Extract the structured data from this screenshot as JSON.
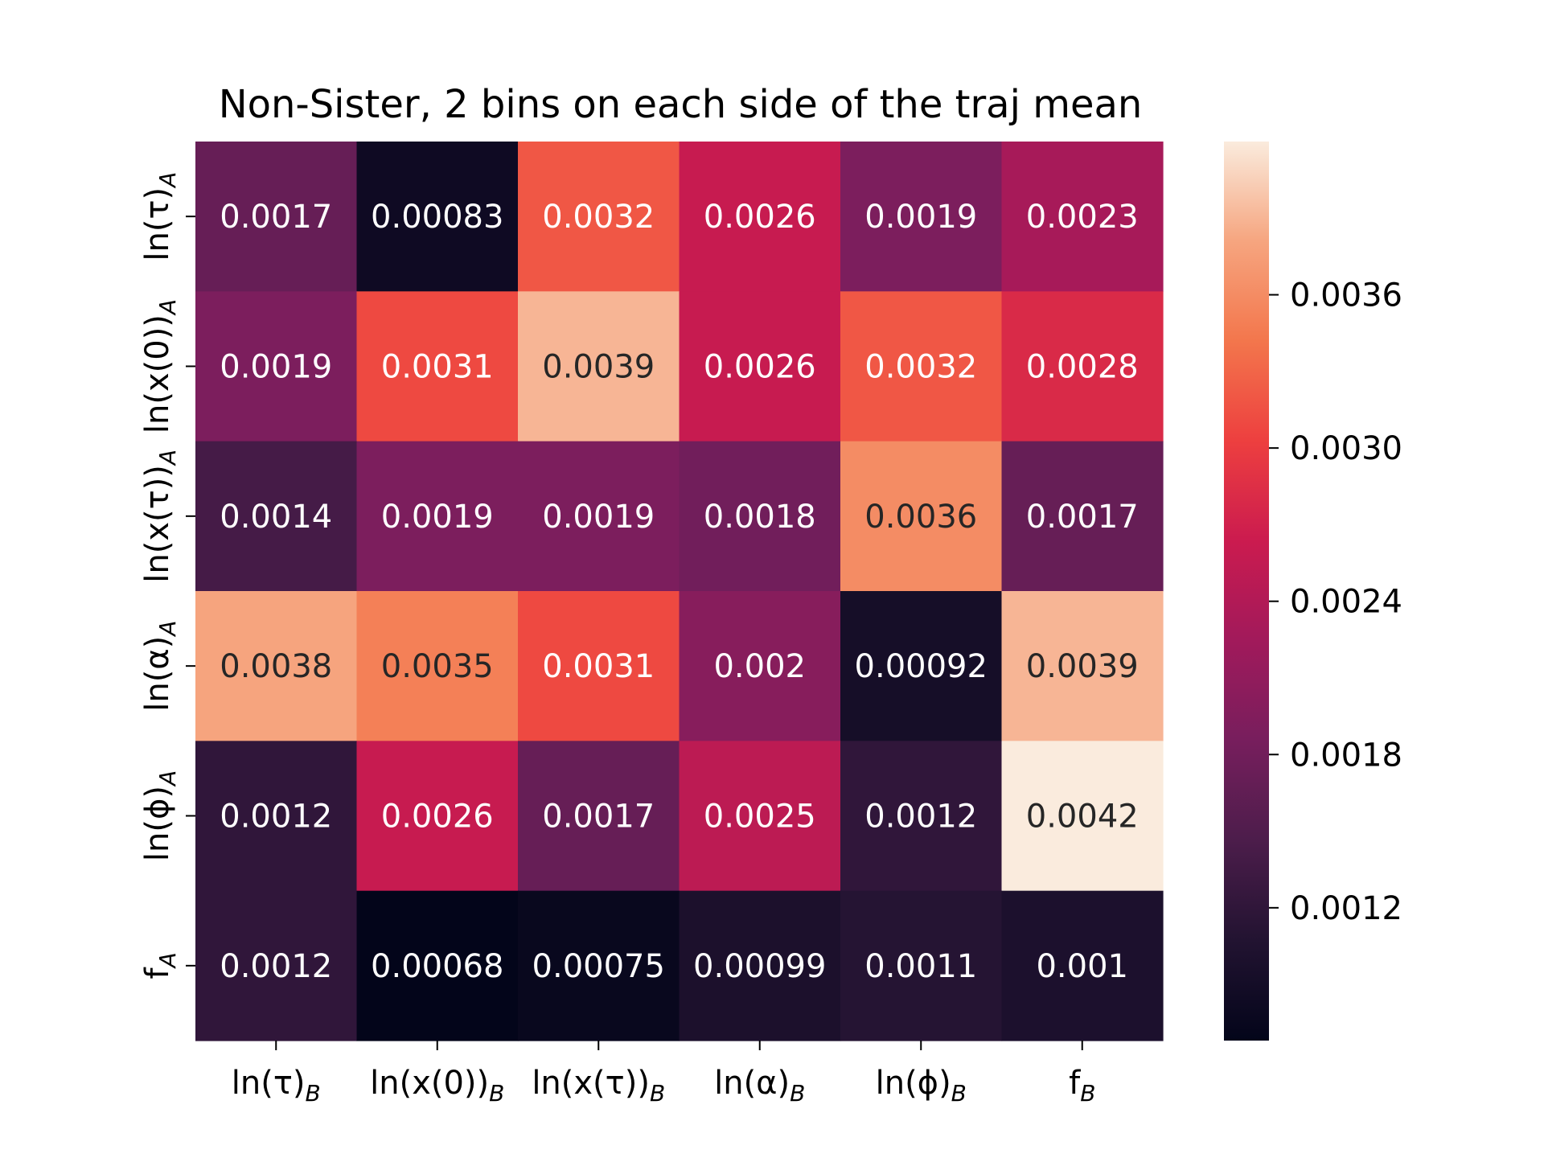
{
  "chart_data": {
    "type": "heatmap",
    "title": "Non-Sister, 2 bins on each side of the traj mean",
    "xlabel": "",
    "ylabel": "",
    "x_categories": [
      "ln(τ)_B",
      "ln(x(0))_B",
      "ln(x(τ))_B",
      "ln(α)_B",
      "ln(ϕ)_B",
      "f_B"
    ],
    "y_categories": [
      "ln(τ)_A",
      "ln(x(0))_A",
      "ln(x(τ))_A",
      "ln(α)_A",
      "ln(ϕ)_A",
      "f_A"
    ],
    "values": [
      [
        0.0017,
        0.00083,
        0.0032,
        0.0026,
        0.0019,
        0.0023
      ],
      [
        0.0019,
        0.0031,
        0.0039,
        0.0026,
        0.0032,
        0.0028
      ],
      [
        0.0014,
        0.0019,
        0.0019,
        0.0018,
        0.0036,
        0.0017
      ],
      [
        0.0038,
        0.0035,
        0.0031,
        0.002,
        0.00092,
        0.0039
      ],
      [
        0.0012,
        0.0026,
        0.0017,
        0.0025,
        0.0012,
        0.0042
      ],
      [
        0.0012,
        0.00068,
        0.00075,
        0.00099,
        0.0011,
        0.001
      ]
    ],
    "colorbar": {
      "range": [
        0.00068,
        0.0042
      ],
      "ticks": [
        0.0012,
        0.0018,
        0.0024,
        0.003,
        0.0036
      ],
      "tick_labels": [
        "0.0012",
        "0.0018",
        "0.0024",
        "0.0030",
        "0.0036"
      ],
      "colormap": "rocket",
      "colormap_stops": [
        "#03051a",
        "#221331",
        "#4c1d4b",
        "#771e5d",
        "#a11a5b",
        "#cb1b4f",
        "#ed3f3f",
        "#f3764c",
        "#f6a57f",
        "#faebdd"
      ]
    },
    "grid": false,
    "legend": "colorbar-right"
  }
}
